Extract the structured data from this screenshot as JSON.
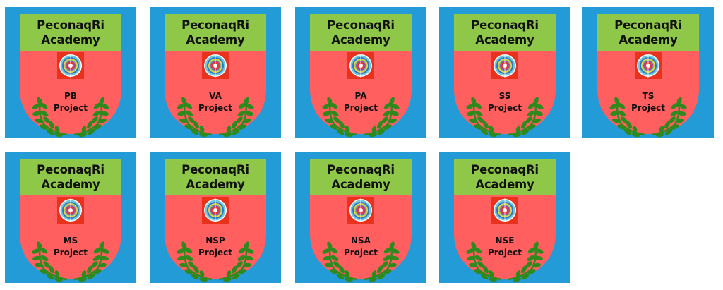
{
  "colors": {
    "background": "#229bd6",
    "header": "#8fc849",
    "shield": "#ff5f5f",
    "emblem_square": "#e8321e",
    "wreath": "#2f8a1e"
  },
  "icons": {
    "emblem": "target-emblem-icon",
    "wreath": "laurel-wreath-icon"
  },
  "academy": {
    "line1": "PeconaqRi",
    "line2": "Academy"
  },
  "badges": [
    {
      "code": "PB",
      "word": "Project"
    },
    {
      "code": "VA",
      "word": "Project"
    },
    {
      "code": "PA",
      "word": "Project"
    },
    {
      "code": "SS",
      "word": "Project"
    },
    {
      "code": "TS",
      "word": "Project"
    },
    {
      "code": "MS",
      "word": "Project"
    },
    {
      "code": "NSP",
      "word": "Project"
    },
    {
      "code": "NSA",
      "word": "Project"
    },
    {
      "code": "NSE",
      "word": "Project"
    }
  ]
}
